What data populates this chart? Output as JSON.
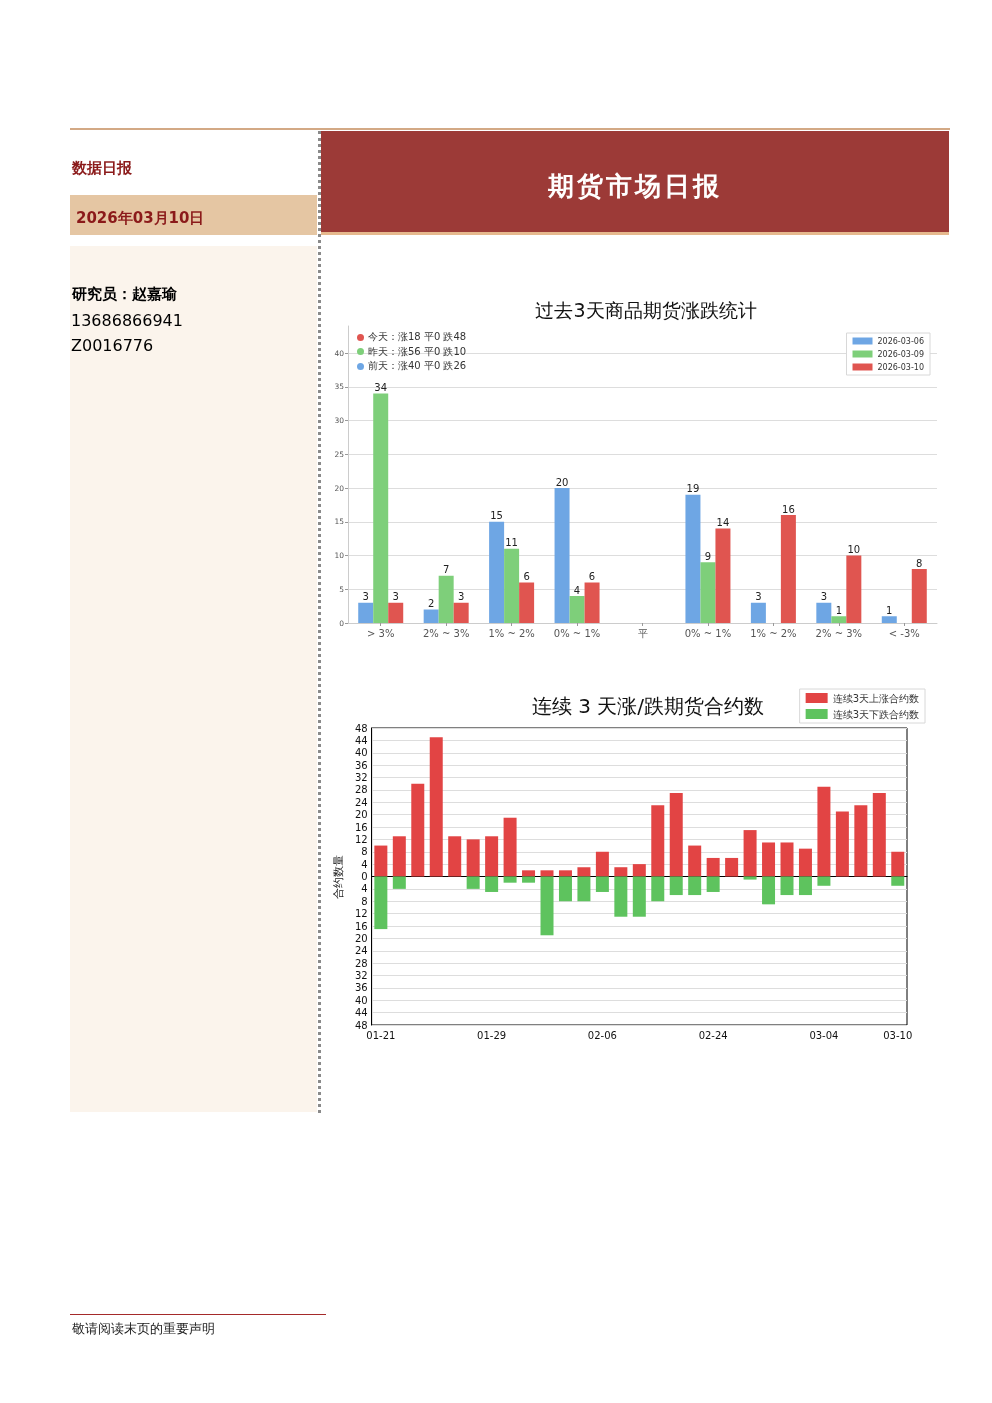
{
  "chart_data": [
    {
      "type": "other",
      "title": "期货市场日报",
      "annotations": [
        "数据日报",
        "2026年03月10日",
        "研究员：赵嘉瑜",
        "13686866941",
        "Z0016776",
        "敬请阅读末页的重要声明"
      ]
    },
    {
      "type": "bar",
      "title": "过去3天商品期货涨跌统计",
      "categories": [
        "> 3%",
        "2% ~ 3%",
        "1% ~ 2%",
        "0% ~ 1%",
        "平",
        "0% ~ 1%",
        "1% ~ 2%",
        "2% ~ 3%",
        "< -3%"
      ],
      "series": [
        {
          "name": "2026-03-06",
          "color": "#6ea6e4",
          "values": [
            3,
            2,
            15,
            20,
            0,
            19,
            3,
            3,
            1
          ],
          "value_labels": [
            "3",
            "2",
            "15",
            "20",
            null,
            "19",
            "3",
            "3",
            "1"
          ]
        },
        {
          "name": "2026-03-09",
          "color": "#7ecf7a",
          "values": [
            34,
            7,
            11,
            4,
            0,
            9,
            0,
            1,
            0
          ],
          "value_labels": [
            "34",
            "7",
            "11",
            "4",
            null,
            "9",
            null,
            "1",
            null
          ]
        },
        {
          "name": "2026-03-10",
          "color": "#e05550",
          "values": [
            3,
            3,
            6,
            6,
            0,
            14,
            16,
            10,
            8
          ],
          "value_labels": [
            "3",
            "3",
            "6",
            "6",
            null,
            "14",
            "16",
            "10",
            "8"
          ]
        }
      ],
      "ylim": [
        0,
        44
      ],
      "yticks": [
        0,
        5,
        10,
        15,
        20,
        25,
        30,
        35,
        40
      ],
      "grid": "y",
      "legend": "top right",
      "annotations": [
        "今天：涨18 平0 跌48",
        "昨天：涨56 平0 跌10",
        "前天：涨40 平0 跌26"
      ]
    },
    {
      "type": "bar",
      "title": "连续 3 天涨/跌期货合约数",
      "ylabel": "合约数量",
      "categories": [
        "01-21",
        null,
        null,
        null,
        null,
        null,
        "01-29",
        null,
        null,
        null,
        null,
        null,
        "02-06",
        null,
        null,
        null,
        null,
        null,
        "02-24",
        null,
        null,
        null,
        null,
        null,
        "03-04",
        null,
        null,
        null,
        "03-10"
      ],
      "series": [
        {
          "name": "连续3天上涨合约数",
          "color": "#e24444",
          "values": [
            10,
            13,
            30,
            45,
            13,
            12,
            13,
            19,
            2,
            2,
            2,
            3,
            8,
            3,
            4,
            23,
            27,
            10,
            6,
            6,
            15,
            11,
            11,
            9,
            29,
            21,
            23,
            27,
            8
          ]
        },
        {
          "name": "连续3天下跌合约数",
          "color": "#5ec35e",
          "values": [
            -17,
            -4,
            0,
            0,
            0,
            -4,
            -5,
            -2,
            -2,
            -19,
            -8,
            -8,
            -5,
            -13,
            -13,
            -8,
            -6,
            -6,
            -5,
            0,
            -1,
            -9,
            -6,
            -6,
            -3,
            0,
            0,
            0,
            -3
          ]
        }
      ],
      "stacked": true,
      "ylim": [
        -48,
        48
      ],
      "yticks": [
        {
          "value": -48,
          "label": "48"
        },
        {
          "value": -44,
          "label": "44"
        },
        {
          "value": -40,
          "label": "40"
        },
        {
          "value": -36,
          "label": "36"
        },
        {
          "value": -32,
          "label": "32"
        },
        {
          "value": -28,
          "label": "28"
        },
        {
          "value": -24,
          "label": "24"
        },
        {
          "value": -20,
          "label": "20"
        },
        {
          "value": -16,
          "label": "16"
        },
        {
          "value": -12,
          "label": "12"
        },
        {
          "value": -8,
          "label": "8"
        },
        {
          "value": -4,
          "label": "4"
        },
        0,
        4,
        8,
        12,
        16,
        20,
        24,
        28,
        32,
        36,
        40,
        44,
        48
      ],
      "grid": "y",
      "legend": "top right"
    }
  ]
}
